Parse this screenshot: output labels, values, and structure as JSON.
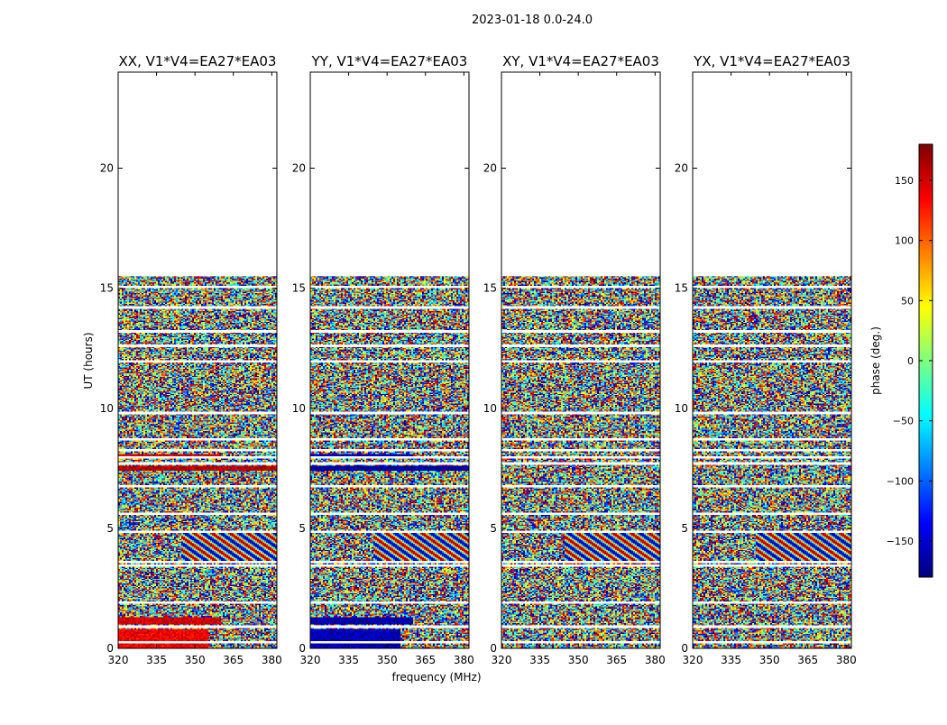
{
  "chart_data": {
    "type": "heatmap",
    "suptitle": "2023-01-18 0.0-24.0",
    "xlabel": "frequency (MHz)",
    "ylabel": "UT (hours)",
    "xlim": [
      320,
      382
    ],
    "ylim": [
      0,
      24
    ],
    "xticks": [
      320,
      335,
      350,
      365,
      380
    ],
    "yticks": [
      0,
      5,
      10,
      15,
      20
    ],
    "panels": [
      {
        "title": "XX, V1*V4=EA27*EA03",
        "pol": "XX"
      },
      {
        "title": "YY, V1*V4=EA27*EA03",
        "pol": "YY"
      },
      {
        "title": "XY, V1*V4=EA27*EA03",
        "pol": "XY"
      },
      {
        "title": "YX, V1*V4=EA27*EA03",
        "pol": "YX"
      }
    ],
    "data_extent_hours": [
      0,
      15.5
    ],
    "blank_rows_hours": [
      0.25,
      0.9,
      1.9,
      3.45,
      3.6,
      4.85,
      5.6,
      6.75,
      7.7,
      7.95,
      8.25,
      8.7,
      9.8,
      11.95,
      12.6,
      13.2,
      14.2,
      15.05
    ],
    "coherent_bands": [
      {
        "panels": [
          "XX"
        ],
        "t0": 0,
        "t1": 0.8,
        "f0": 320,
        "f1": 355,
        "phase": 140
      },
      {
        "panels": [
          "YY"
        ],
        "t0": 0,
        "t1": 0.8,
        "f0": 320,
        "f1": 355,
        "phase": -160
      },
      {
        "panels": [
          "XX"
        ],
        "t0": 1.0,
        "t1": 1.3,
        "f0": 320,
        "f1": 360,
        "phase": 150
      },
      {
        "panels": [
          "YY"
        ],
        "t0": 1.0,
        "t1": 1.3,
        "f0": 320,
        "f1": 360,
        "phase": -165
      },
      {
        "panels": [
          "XX"
        ],
        "t0": 7.4,
        "t1": 7.6,
        "f0": 320,
        "f1": 382,
        "phase": 160
      },
      {
        "panels": [
          "YY"
        ],
        "t0": 7.4,
        "t1": 7.6,
        "f0": 320,
        "f1": 382,
        "phase": -170
      },
      {
        "panels": [
          "XX"
        ],
        "t0": 7.95,
        "t1": 8.1,
        "f0": 320,
        "f1": 360,
        "phase": 150
      },
      {
        "panels": [
          "YY"
        ],
        "t0": 7.95,
        "t1": 8.1,
        "f0": 320,
        "f1": 360,
        "phase": -160
      }
    ],
    "colorbar": {
      "label": "phase (deg.)",
      "range": [
        -180,
        180
      ],
      "ticks": [
        -150,
        -100,
        -50,
        0,
        50,
        100,
        150
      ],
      "colormap": "jet"
    }
  }
}
